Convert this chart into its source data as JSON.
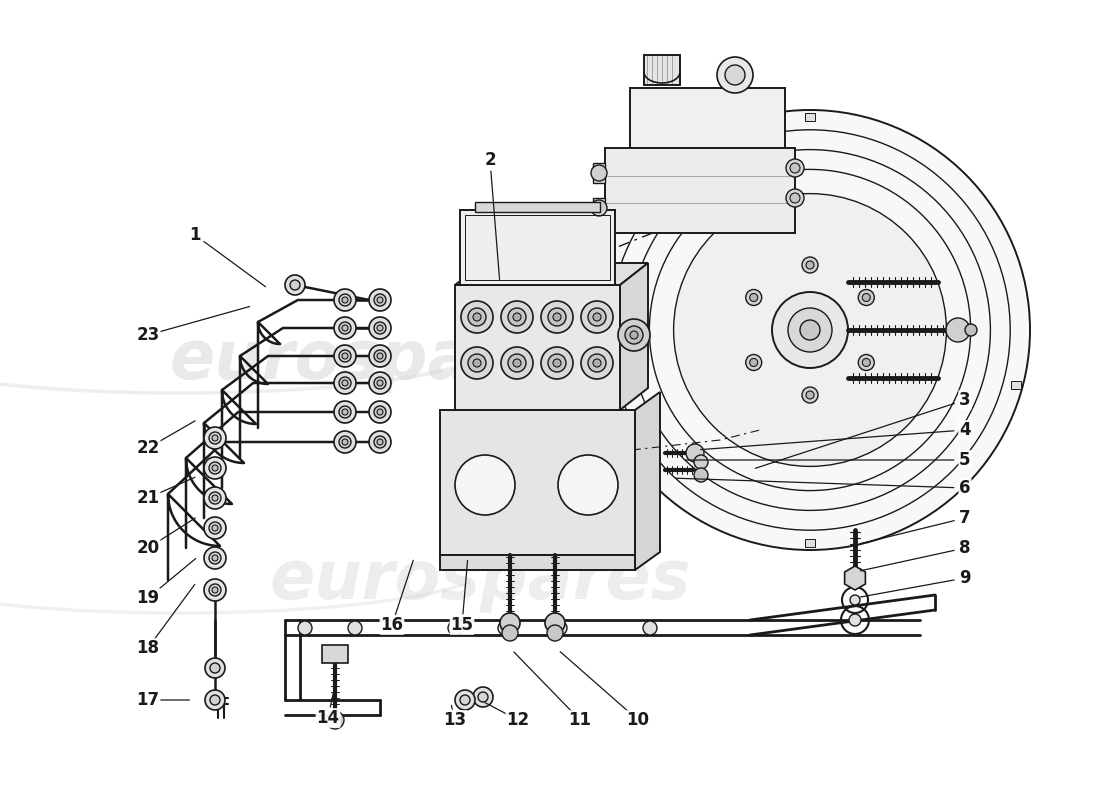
{
  "bg_color": "#ffffff",
  "line_color": "#1a1a1a",
  "watermark_color": "#d0d0d0",
  "label_fontsize": 12,
  "label_data": [
    [
      1,
      195,
      235,
      270,
      290
    ],
    [
      2,
      490,
      160,
      500,
      285
    ],
    [
      3,
      965,
      400,
      750,
      470
    ],
    [
      4,
      965,
      430,
      695,
      450
    ],
    [
      5,
      965,
      460,
      680,
      460
    ],
    [
      6,
      965,
      488,
      670,
      478
    ],
    [
      7,
      965,
      518,
      855,
      545
    ],
    [
      8,
      965,
      548,
      855,
      572
    ],
    [
      9,
      965,
      578,
      855,
      598
    ],
    [
      10,
      638,
      720,
      556,
      648
    ],
    [
      11,
      580,
      720,
      510,
      648
    ],
    [
      12,
      518,
      720,
      480,
      700
    ],
    [
      13,
      455,
      720,
      450,
      700
    ],
    [
      14,
      328,
      718,
      335,
      685
    ],
    [
      15,
      462,
      625,
      468,
      555
    ],
    [
      16,
      392,
      625,
      415,
      555
    ],
    [
      17,
      148,
      700,
      195,
      700
    ],
    [
      18,
      148,
      648,
      198,
      580
    ],
    [
      19,
      148,
      598,
      200,
      555
    ],
    [
      20,
      148,
      548,
      200,
      515
    ],
    [
      21,
      148,
      498,
      200,
      475
    ],
    [
      22,
      148,
      448,
      200,
      418
    ],
    [
      23,
      148,
      335,
      255,
      305
    ]
  ]
}
